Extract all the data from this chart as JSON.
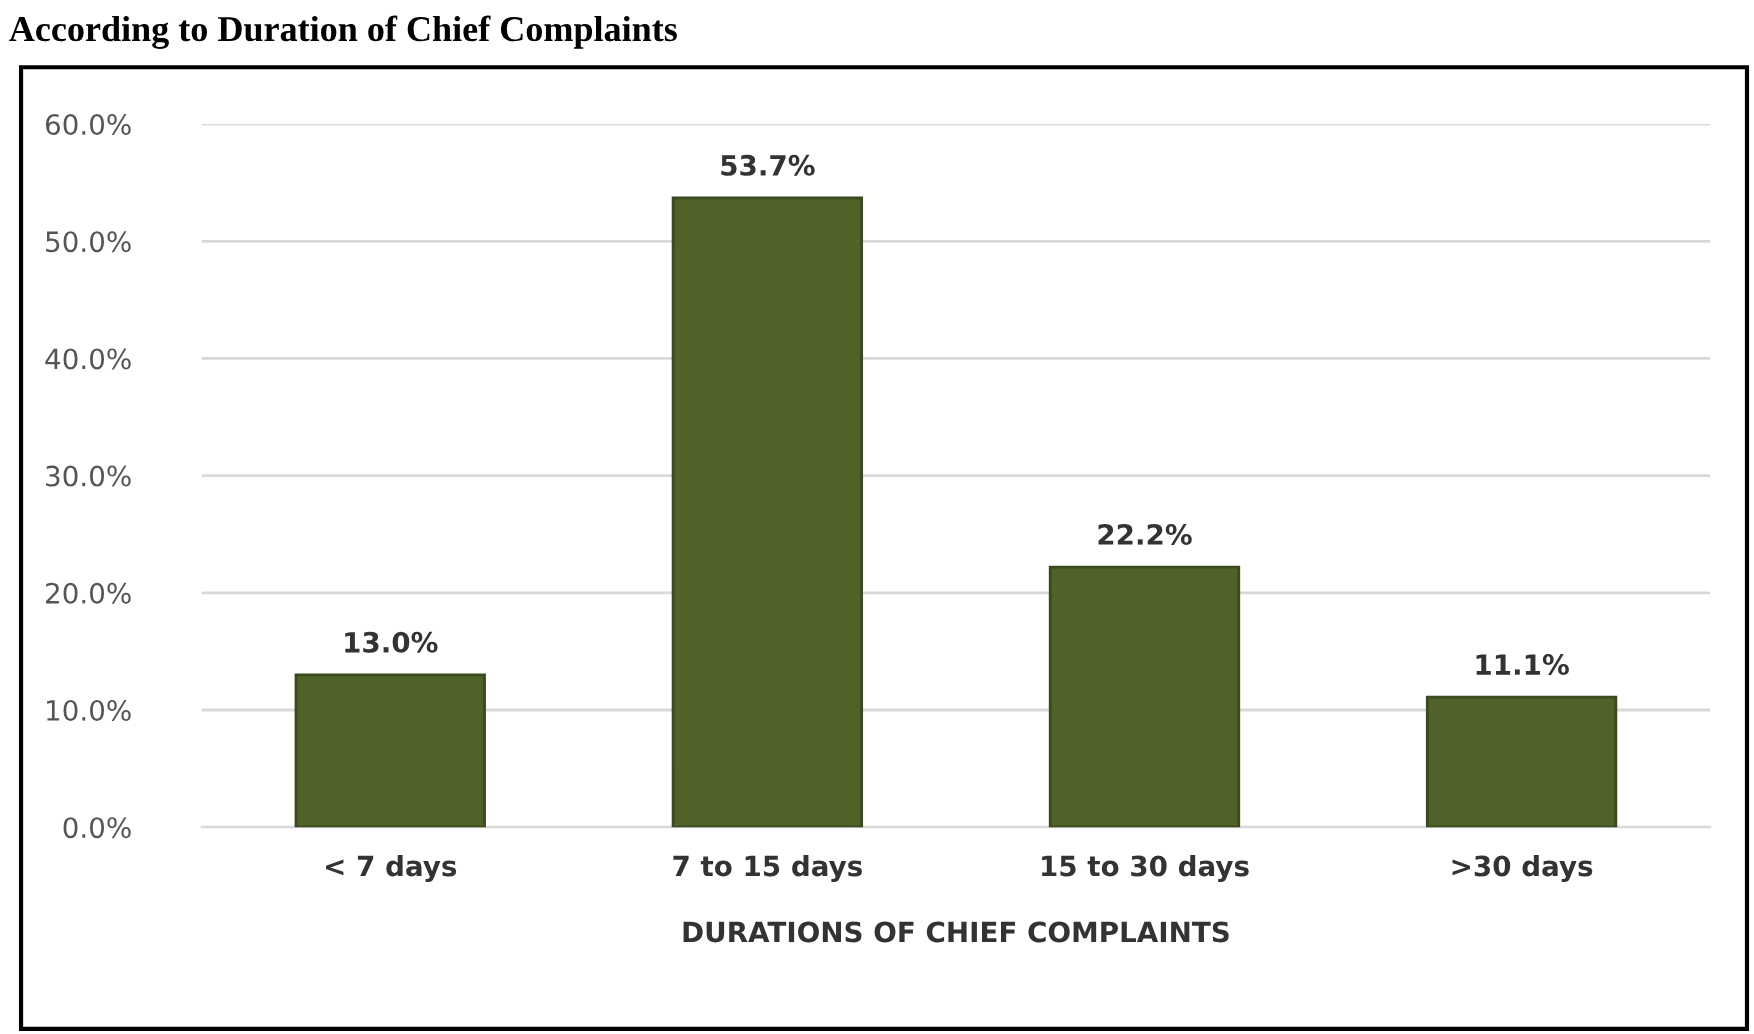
{
  "chart_data": {
    "type": "bar",
    "title": "According to Duration of Chief Complaints",
    "xlabel": "DURATIONS OF CHIEF COMPLAINTS",
    "categories": [
      "< 7 days",
      "7 to 15 days",
      "15 to 30 days",
      ">30 days"
    ],
    "values": [
      13.0,
      53.7,
      22.2,
      11.1
    ],
    "value_labels": [
      "13.0%",
      "53.7%",
      "22.2%",
      "11.1%"
    ],
    "color": "#4f6228",
    "ylim": [
      0,
      60
    ],
    "yticks": [
      {
        "value": 0,
        "label": "0.0%"
      },
      {
        "value": 10,
        "label": "10.0%"
      },
      {
        "value": 20,
        "label": "20.0%"
      },
      {
        "value": 30,
        "label": "30.0%"
      },
      {
        "value": 40,
        "label": "40.0%"
      },
      {
        "value": 50,
        "label": "50.0%"
      },
      {
        "value": 60,
        "label": "60.0%"
      }
    ],
    "grid": "y"
  }
}
